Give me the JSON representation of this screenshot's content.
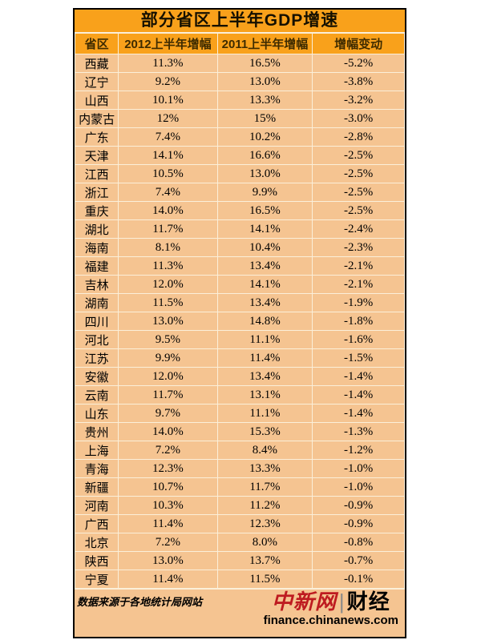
{
  "colors": {
    "orange": "#F9A11B",
    "peach": "#F5C491",
    "grid": "#FBEFD9",
    "border": "#000000",
    "header_text": "#3E2B00",
    "body_text": "#000000",
    "logo_red": "#BE1B20"
  },
  "chart_data": {
    "type": "table",
    "title": "部分省区上半年GDP增速",
    "columns": [
      "省区",
      "2012上半年增幅",
      "2011上半年增幅",
      "增幅变动"
    ],
    "rows": [
      [
        "西藏",
        "11.3%",
        "16.5%",
        "-5.2%"
      ],
      [
        "辽宁",
        "9.2%",
        "13.0%",
        "-3.8%"
      ],
      [
        "山西",
        "10.1%",
        "13.3%",
        "-3.2%"
      ],
      [
        "内蒙古",
        "12%",
        "15%",
        "-3.0%"
      ],
      [
        "广东",
        "7.4%",
        "10.2%",
        "-2.8%"
      ],
      [
        "天津",
        "14.1%",
        "16.6%",
        "-2.5%"
      ],
      [
        "江西",
        "10.5%",
        "13.0%",
        "-2.5%"
      ],
      [
        "浙江",
        "7.4%",
        "9.9%",
        "-2.5%"
      ],
      [
        "重庆",
        "14.0%",
        "16.5%",
        "-2.5%"
      ],
      [
        "湖北",
        "11.7%",
        "14.1%",
        "-2.4%"
      ],
      [
        "海南",
        "8.1%",
        "10.4%",
        "-2.3%"
      ],
      [
        "福建",
        "11.3%",
        "13.4%",
        "-2.1%"
      ],
      [
        "吉林",
        "12.0%",
        "14.1%",
        "-2.1%"
      ],
      [
        "湖南",
        "11.5%",
        "13.4%",
        "-1.9%"
      ],
      [
        "四川",
        "13.0%",
        "14.8%",
        "-1.8%"
      ],
      [
        "河北",
        "9.5%",
        "11.1%",
        "-1.6%"
      ],
      [
        "江苏",
        "9.9%",
        "11.4%",
        "-1.5%"
      ],
      [
        "安徽",
        "12.0%",
        "13.4%",
        "-1.4%"
      ],
      [
        "云南",
        "11.7%",
        "13.1%",
        "-1.4%"
      ],
      [
        "山东",
        "9.7%",
        "11.1%",
        "-1.4%"
      ],
      [
        "贵州",
        "14.0%",
        "15.3%",
        "-1.3%"
      ],
      [
        "上海",
        "7.2%",
        "8.4%",
        "-1.2%"
      ],
      [
        "青海",
        "12.3%",
        "13.3%",
        "-1.0%"
      ],
      [
        "新疆",
        "10.7%",
        "11.7%",
        "-1.0%"
      ],
      [
        "河南",
        "10.3%",
        "11.2%",
        "-0.9%"
      ],
      [
        "广西",
        "11.4%",
        "12.3%",
        "-0.9%"
      ],
      [
        "北京",
        "7.2%",
        "8.0%",
        "-0.8%"
      ],
      [
        "陕西",
        "13.0%",
        "13.7%",
        "-0.7%"
      ],
      [
        "宁夏",
        "11.4%",
        "11.5%",
        "-0.1%"
      ]
    ]
  },
  "footer": {
    "source": "数据来源于各地统计局网站",
    "logo": {
      "brand": "中新网",
      "divider": "|",
      "section": "财经",
      "url": "finance.chinanews.com"
    }
  }
}
